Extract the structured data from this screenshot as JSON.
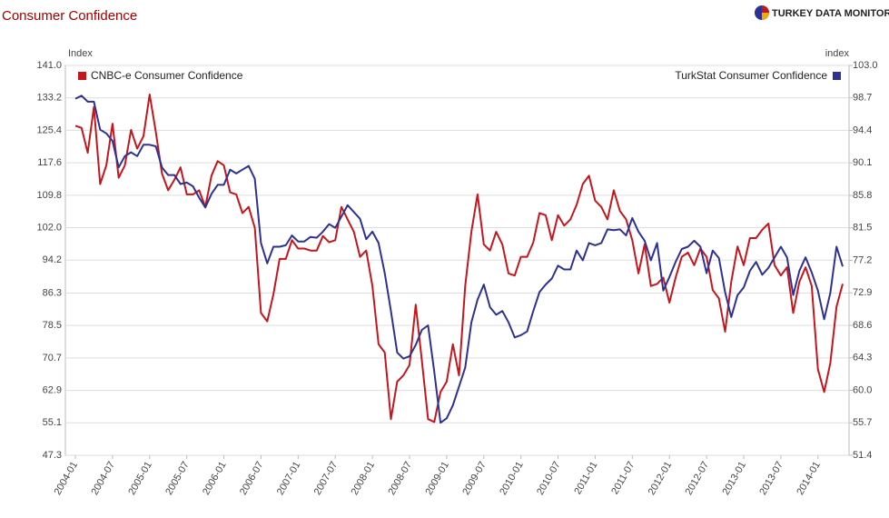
{
  "logo": "TURKEY DATA MONITOR",
  "chart_data": {
    "type": "line",
    "title": "Consumer Confidence",
    "y_label": "Index",
    "y2_label": "index",
    "categories": [
      "2004-01",
      null,
      null,
      null,
      null,
      null,
      "2004-07",
      null,
      null,
      null,
      null,
      null,
      "2005-01",
      null,
      null,
      null,
      null,
      null,
      "2005-07",
      null,
      null,
      null,
      null,
      null,
      "2006-01",
      null,
      null,
      null,
      null,
      null,
      "2006-07",
      null,
      null,
      null,
      null,
      null,
      "2007-01",
      null,
      null,
      null,
      null,
      null,
      "2007-07",
      null,
      null,
      null,
      null,
      null,
      "2008-01",
      null,
      null,
      null,
      null,
      null,
      "2008-07",
      null,
      null,
      null,
      null,
      null,
      "2009-01",
      null,
      null,
      null,
      null,
      null,
      "2009-07",
      null,
      null,
      null,
      null,
      null,
      "2010-01",
      null,
      null,
      null,
      null,
      null,
      "2010-07",
      null,
      null,
      null,
      null,
      null,
      "2011-01",
      null,
      null,
      null,
      null,
      null,
      "2011-07",
      null,
      null,
      null,
      null,
      null,
      "2012-01",
      null,
      null,
      null,
      null,
      null,
      "2012-07",
      null,
      null,
      null,
      null,
      null,
      "2013-01",
      null,
      null,
      null,
      null,
      null,
      "2013-07",
      null,
      null,
      null,
      null,
      null,
      "2014-01",
      null,
      null,
      null,
      null
    ],
    "series": [
      {
        "name": "CNBC-e Consumer Confidence",
        "color": "#c4161c",
        "axis": "y",
        "values": [
          126.5,
          126,
          120,
          131,
          112.5,
          117,
          127,
          114,
          117,
          125.5,
          121,
          124,
          134,
          125,
          115,
          111,
          113.5,
          116.5,
          110,
          110,
          111,
          107,
          114.5,
          118,
          117,
          110.5,
          110,
          105.5,
          107,
          102,
          81.5,
          79.5,
          86,
          94.5,
          94.5,
          99,
          97,
          97,
          96.5,
          96.5,
          100,
          98.5,
          99,
          107,
          104,
          101,
          95,
          96.5,
          88,
          74,
          72,
          56,
          65,
          66.5,
          69,
          83.5,
          70,
          56,
          55.3,
          62.5,
          65,
          74,
          66.5,
          88,
          101,
          110,
          98,
          96.5,
          101,
          98,
          91,
          90.5,
          95,
          95,
          98.5,
          105.5,
          105,
          99,
          105,
          102.5,
          104,
          107.5,
          112.5,
          114.5,
          108.5,
          107,
          104,
          111,
          106,
          104,
          99,
          91,
          98,
          88,
          88.5,
          90,
          84,
          90,
          95,
          96,
          93,
          97,
          95,
          87,
          85,
          77,
          89,
          97.5,
          93,
          99.5,
          99.5,
          101.5,
          103,
          93,
          90.5,
          92.5,
          81.5,
          89,
          92.5,
          88,
          68,
          62.5,
          69.5,
          83,
          88.5
        ]
      },
      {
        "name": "TurkStat Consumer Confidence",
        "color": "#2e3192",
        "axis": "y2",
        "values": [
          98.6,
          99,
          98.2,
          98.2,
          94.5,
          94,
          93,
          89.5,
          91,
          91.5,
          91,
          92.5,
          92.5,
          92.3,
          89.5,
          88.5,
          88.5,
          87.3,
          87.5,
          87,
          85.5,
          84.2,
          86,
          87.2,
          87.2,
          89.2,
          88.7,
          89.2,
          89.7,
          88,
          79.5,
          76.8,
          79,
          79,
          79.2,
          80.5,
          79.7,
          79.7,
          80.3,
          80.2,
          81,
          82,
          81.5,
          83,
          84.5,
          83.6,
          82.7,
          80,
          81,
          79.5,
          75.5,
          70.5,
          65,
          64.2,
          64.5,
          66,
          68,
          68.6,
          62.5,
          55.7,
          56.3,
          58,
          60.5,
          63,
          69,
          72,
          74,
          71,
          70,
          70.5,
          69,
          67,
          67.3,
          67.8,
          70.5,
          73,
          74,
          74.8,
          76.5,
          76,
          76,
          78.5,
          77.2,
          79.5,
          79.2,
          79.5,
          81.3,
          81.2,
          81.3,
          80.5,
          82.8,
          81,
          79.8,
          77.2,
          79.5,
          73.2,
          75,
          77,
          78.7,
          79,
          79.8,
          79,
          75.5,
          78.5,
          77.5,
          73,
          69.7,
          72.6,
          73.6,
          75.8,
          77,
          75.3,
          76.2,
          77.6,
          79,
          77.6,
          72.6,
          75.8,
          77.6,
          75.6,
          73.2,
          69.4,
          72.9,
          79,
          76.4
        ]
      }
    ],
    "ylim": [
      47.3,
      141.0
    ],
    "yticks": [
      47.3,
      55.1,
      62.9,
      70.7,
      78.5,
      86.3,
      94.2,
      {
        "value": 102,
        "label": "102.0"
      },
      109.8,
      117.6,
      125.4,
      133.2,
      {
        "value": 141,
        "label": "141.0"
      }
    ],
    "y2lim": [
      51.4,
      103.0
    ],
    "y2ticks": [
      51.4,
      55.7,
      {
        "value": 60,
        "label": "60.0"
      },
      64.3,
      68.6,
      72.9,
      77.2,
      81.5,
      85.8,
      90.1,
      94.4,
      98.7,
      {
        "value": 103,
        "label": "103.0"
      }
    ],
    "grid": true
  }
}
